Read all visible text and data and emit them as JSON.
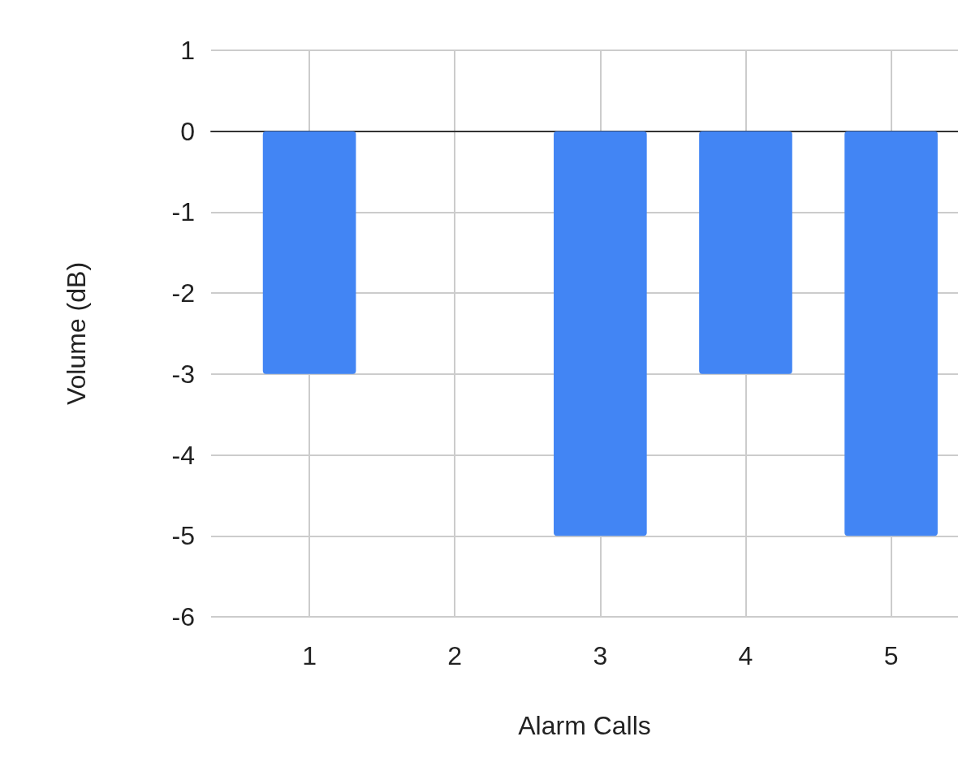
{
  "chart_data": {
    "type": "bar",
    "xlabel": "Alarm Calls",
    "ylabel": "Volume (dB)",
    "categories": [
      "1",
      "2",
      "3",
      "4",
      "5"
    ],
    "values": [
      -3,
      0,
      -5,
      -3,
      -5
    ],
    "color": "#4285f4",
    "ylim": [
      -6,
      1
    ],
    "yticks": [
      -6,
      -5,
      -4,
      -3,
      -2,
      -1,
      0,
      1
    ],
    "grid": true
  }
}
